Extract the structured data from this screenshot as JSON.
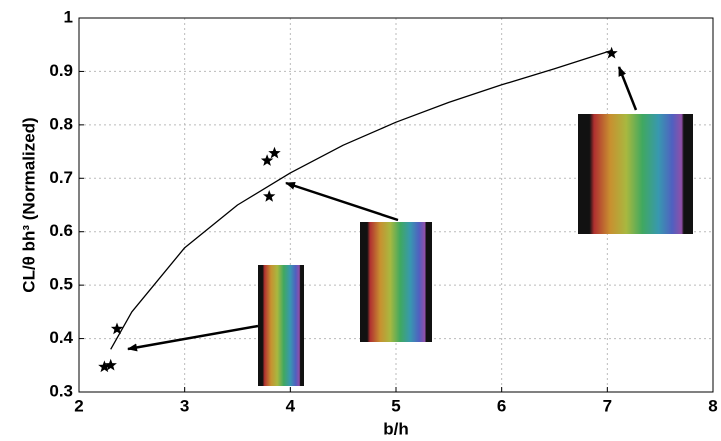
{
  "chart_data": {
    "type": "scatter",
    "x_label": "b/h",
    "y_label": "CL/θ bh³ (Normalized)",
    "xlim": [
      2,
      8
    ],
    "xticks": [
      2,
      3,
      4,
      5,
      6,
      7,
      8
    ],
    "ylim": [
      0.3,
      1
    ],
    "yticks": [
      0.3,
      0.4,
      0.5,
      0.6,
      0.7,
      0.8,
      0.9,
      1
    ],
    "grid": true,
    "series": [
      {
        "style": "markers",
        "marker": "star",
        "color": "#000",
        "x": [
          2.24,
          2.3,
          2.36,
          3.78,
          3.85,
          3.8,
          7.04
        ],
        "values": [
          0.347,
          0.35,
          0.418,
          0.733,
          0.747,
          0.666,
          0.934
        ]
      },
      {
        "style": "line",
        "color": "#000",
        "x": [
          2.3,
          2.5,
          3,
          3.5,
          4,
          4.5,
          5,
          5.5,
          6,
          6.5,
          7.05
        ],
        "values": [
          0.38,
          0.45,
          0.57,
          0.65,
          0.71,
          0.762,
          0.805,
          0.842,
          0.875,
          0.905,
          0.94
        ]
      }
    ]
  }
}
